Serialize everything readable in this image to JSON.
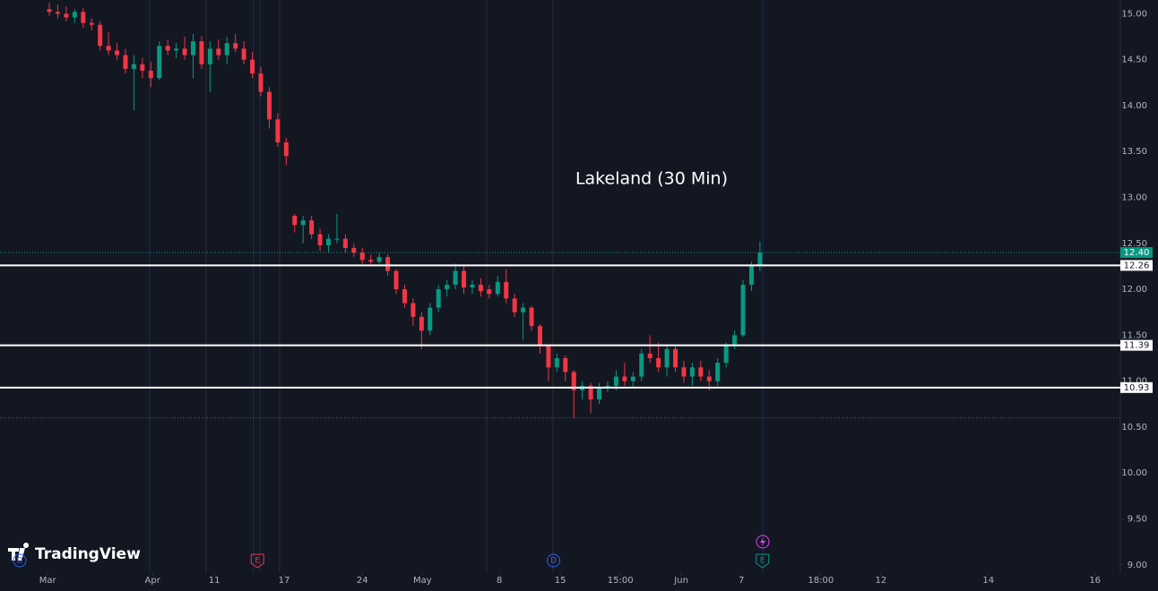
{
  "chart_data": {
    "type": "candlestick",
    "title": "Lakeland (30 Min)",
    "watermark": "TradingView",
    "up_color": "#089981",
    "down_color": "#f23645",
    "x": [
      0,
      1,
      2,
      3,
      4,
      5,
      6,
      7,
      8,
      9,
      10,
      11,
      12,
      13,
      14,
      15,
      16,
      17,
      18,
      19,
      20,
      21,
      22,
      23,
      24,
      25,
      26,
      27,
      28,
      29,
      30,
      31,
      32,
      33,
      34,
      35,
      36,
      37,
      38,
      39,
      40,
      41,
      42,
      43,
      44,
      45,
      46,
      47,
      48,
      49,
      50,
      51,
      52,
      53,
      54,
      55,
      56,
      57,
      58,
      59,
      60,
      61,
      62,
      63,
      64,
      65,
      66,
      67,
      68,
      69,
      70,
      71,
      72,
      73,
      74,
      75,
      76,
      77,
      78,
      79,
      80,
      81,
      82,
      83,
      84
    ],
    "ohlc": [
      [
        15.05,
        15.12,
        14.98,
        15.02
      ],
      [
        15.02,
        15.1,
        14.95,
        15.0
      ],
      [
        15.0,
        15.08,
        14.92,
        14.96
      ],
      [
        14.96,
        15.05,
        14.9,
        15.02
      ],
      [
        15.02,
        15.06,
        14.85,
        14.9
      ],
      [
        14.9,
        14.95,
        14.82,
        14.88
      ],
      [
        14.88,
        14.92,
        14.6,
        14.65
      ],
      [
        14.65,
        14.8,
        14.55,
        14.6
      ],
      [
        14.6,
        14.68,
        14.5,
        14.55
      ],
      [
        14.55,
        14.62,
        14.35,
        14.4
      ],
      [
        14.4,
        14.55,
        13.95,
        14.45
      ],
      [
        14.45,
        14.52,
        14.3,
        14.38
      ],
      [
        14.38,
        14.48,
        14.2,
        14.3
      ],
      [
        14.3,
        14.7,
        14.28,
        14.65
      ],
      [
        14.65,
        14.72,
        14.55,
        14.6
      ],
      [
        14.6,
        14.68,
        14.52,
        14.62
      ],
      [
        14.62,
        14.75,
        14.5,
        14.55
      ],
      [
        14.55,
        14.78,
        14.3,
        14.7
      ],
      [
        14.7,
        14.76,
        14.4,
        14.45
      ],
      [
        14.45,
        14.7,
        14.15,
        14.62
      ],
      [
        14.62,
        14.72,
        14.5,
        14.55
      ],
      [
        14.55,
        14.75,
        14.45,
        14.68
      ],
      [
        14.68,
        14.78,
        14.58,
        14.62
      ],
      [
        14.62,
        14.7,
        14.45,
        14.5
      ],
      [
        14.5,
        14.58,
        14.3,
        14.35
      ],
      [
        14.35,
        14.42,
        14.1,
        14.15
      ],
      [
        14.15,
        14.2,
        13.75,
        13.85
      ],
      [
        13.85,
        13.92,
        13.55,
        13.6
      ],
      [
        13.6,
        13.65,
        13.35,
        13.45
      ],
      [
        12.8,
        12.82,
        12.62,
        12.7
      ],
      [
        12.7,
        12.8,
        12.5,
        12.75
      ],
      [
        12.75,
        12.8,
        12.55,
        12.6
      ],
      [
        12.6,
        12.66,
        12.42,
        12.48
      ],
      [
        12.48,
        12.6,
        12.4,
        12.55
      ],
      [
        12.55,
        12.82,
        12.5,
        12.55
      ],
      [
        12.55,
        12.6,
        12.4,
        12.45
      ],
      [
        12.45,
        12.5,
        12.35,
        12.4
      ],
      [
        12.4,
        12.45,
        12.28,
        12.32
      ],
      [
        12.32,
        12.38,
        12.25,
        12.3
      ],
      [
        12.3,
        12.4,
        12.28,
        12.35
      ],
      [
        12.35,
        12.38,
        12.15,
        12.2
      ],
      [
        12.2,
        12.22,
        11.95,
        12.0
      ],
      [
        12.0,
        12.05,
        11.8,
        11.85
      ],
      [
        11.85,
        11.9,
        11.6,
        11.7
      ],
      [
        11.7,
        11.75,
        11.35,
        11.55
      ],
      [
        11.55,
        11.85,
        11.5,
        11.8
      ],
      [
        11.8,
        12.05,
        11.75,
        12.0
      ],
      [
        12.0,
        12.1,
        11.92,
        12.05
      ],
      [
        12.05,
        12.28,
        12.0,
        12.2
      ],
      [
        12.2,
        12.25,
        11.95,
        12.02
      ],
      [
        12.02,
        12.1,
        11.95,
        12.05
      ],
      [
        12.05,
        12.12,
        11.92,
        11.98
      ],
      [
        12.0,
        12.05,
        11.9,
        11.95
      ],
      [
        11.95,
        12.15,
        11.92,
        12.08
      ],
      [
        12.08,
        12.22,
        11.85,
        11.9
      ],
      [
        11.9,
        11.95,
        11.7,
        11.75
      ],
      [
        11.75,
        11.85,
        11.45,
        11.8
      ],
      [
        11.8,
        11.82,
        11.55,
        11.6
      ],
      [
        11.6,
        11.62,
        11.3,
        11.38
      ],
      [
        11.38,
        11.4,
        11.0,
        11.15
      ],
      [
        11.15,
        11.3,
        11.1,
        11.25
      ],
      [
        11.25,
        11.28,
        11.0,
        11.1
      ],
      [
        11.1,
        11.12,
        10.6,
        10.9
      ],
      [
        10.9,
        11.0,
        10.8,
        10.95
      ],
      [
        10.95,
        10.98,
        10.65,
        10.8
      ],
      [
        10.8,
        10.98,
        10.75,
        10.92
      ],
      [
        10.92,
        11.0,
        10.88,
        10.95
      ],
      [
        10.95,
        11.12,
        10.9,
        11.05
      ],
      [
        11.05,
        11.2,
        10.95,
        11.0
      ],
      [
        11.0,
        11.1,
        10.92,
        11.05
      ],
      [
        11.05,
        11.35,
        11.0,
        11.3
      ],
      [
        11.3,
        11.5,
        11.2,
        11.25
      ],
      [
        11.25,
        11.42,
        11.1,
        11.15
      ],
      [
        11.15,
        11.4,
        11.05,
        11.35
      ],
      [
        11.35,
        11.38,
        11.1,
        11.15
      ],
      [
        11.15,
        11.22,
        10.98,
        11.05
      ],
      [
        11.05,
        11.2,
        10.95,
        11.15
      ],
      [
        11.15,
        11.22,
        11.0,
        11.05
      ],
      [
        11.05,
        11.12,
        10.9,
        11.0
      ],
      [
        11.0,
        11.25,
        10.95,
        11.2
      ],
      [
        11.2,
        11.42,
        11.15,
        11.4
      ],
      [
        11.4,
        11.55,
        11.35,
        11.5
      ],
      [
        11.5,
        12.1,
        11.48,
        12.05
      ],
      [
        12.05,
        12.3,
        11.98,
        12.25
      ],
      [
        12.25,
        12.52,
        12.2,
        12.4
      ]
    ],
    "xlim": [
      -5.83,
      126.6
    ],
    "xticks": [
      {
        "value": -0.2,
        "label": "Mar"
      },
      {
        "value": 12.2,
        "label": "Apr"
      },
      {
        "value": 19.5,
        "label": "11"
      },
      {
        "value": 27.75,
        "label": "17"
      },
      {
        "value": 37.0,
        "label": "24"
      },
      {
        "value": 44.1,
        "label": "May"
      },
      {
        "value": 53.2,
        "label": "8"
      },
      {
        "value": 60.4,
        "label": "15"
      },
      {
        "value": 67.5,
        "label": "15:00"
      },
      {
        "value": 74.7,
        "label": "Jun"
      },
      {
        "value": 81.8,
        "label": "7"
      },
      {
        "value": 91.2,
        "label": "18:00"
      },
      {
        "value": 98.3,
        "label": "12"
      },
      {
        "value": 111.0,
        "label": "14"
      },
      {
        "value": 123.6,
        "label": "16"
      }
    ],
    "ylim": [
      8.91,
      15.15
    ],
    "yticks": [
      {
        "value": 9,
        "label": "9.00"
      },
      {
        "value": 9.5,
        "label": "9.50"
      },
      {
        "value": 10,
        "label": "10.00"
      },
      {
        "value": 10.5,
        "label": "10.50"
      },
      {
        "value": 11,
        "label": "11.00"
      },
      {
        "value": 11.5,
        "label": "11.50"
      },
      {
        "value": 12,
        "label": "12.00"
      },
      {
        "value": 12.5,
        "label": "12.50"
      },
      {
        "value": 13,
        "label": "13.00"
      },
      {
        "value": 13.5,
        "label": "13.50"
      },
      {
        "value": 14,
        "label": "14.00"
      },
      {
        "value": 14.5,
        "label": "14.50"
      },
      {
        "value": 15,
        "label": "15.00"
      }
    ],
    "last_price": {
      "value": 12.4,
      "label": "12.40"
    },
    "levels": [
      {
        "value": 12.26,
        "label": "12.26"
      },
      {
        "value": 11.39,
        "label": "11.39"
      },
      {
        "value": 10.93,
        "label": "10.93"
      }
    ],
    "low_line": 10.6,
    "events": [
      {
        "x": -3.5,
        "label": "D",
        "color": "#2962ff"
      },
      {
        "x": 24.6,
        "label": "E",
        "color": "#f23645"
      },
      {
        "x": 59.6,
        "label": "D",
        "color": "#2962ff"
      },
      {
        "x": 84.3,
        "label": "E",
        "color": "#089981"
      }
    ]
  }
}
